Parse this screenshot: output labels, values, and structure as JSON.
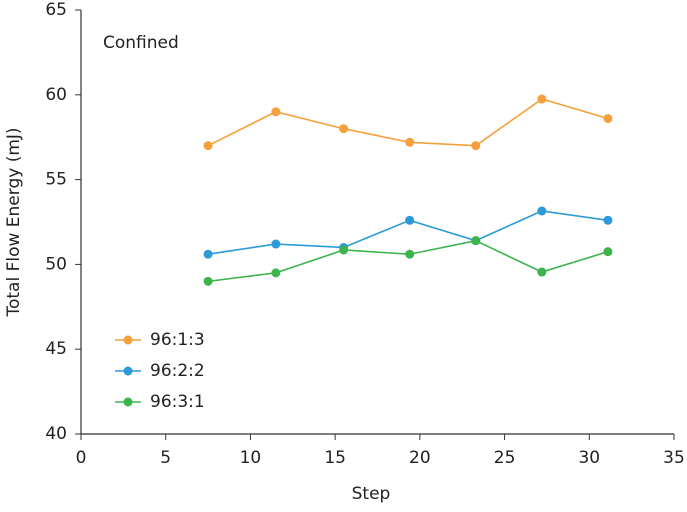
{
  "chart_data": {
    "type": "line",
    "annotation": "Confined",
    "x_label": "Step",
    "y_label": "Total Flow Energy (mJ)",
    "x": [
      7.5,
      11.5,
      15.5,
      19.4,
      23.3,
      27.2,
      31.1
    ],
    "series": [
      {
        "name": "96:1:3",
        "color": "#f5a03c",
        "values": [
          57.0,
          59.0,
          58.0,
          57.2,
          57.0,
          59.75,
          58.6
        ]
      },
      {
        "name": "96:2:2",
        "color": "#2b9ad6",
        "values": [
          50.6,
          51.2,
          51.0,
          52.6,
          51.4,
          53.15,
          52.6
        ]
      },
      {
        "name": "96:3:1",
        "color": "#3cb44b",
        "values": [
          49.0,
          49.5,
          50.85,
          50.6,
          51.4,
          49.55,
          50.75
        ]
      }
    ],
    "xlim": [
      0,
      35
    ],
    "xticks": [
      0,
      5,
      10,
      15,
      20,
      25,
      30,
      35
    ],
    "ylim": [
      40,
      65
    ],
    "yticks": [
      40,
      45,
      50,
      55,
      60,
      65
    ],
    "grid": false,
    "legend": "lower left"
  }
}
